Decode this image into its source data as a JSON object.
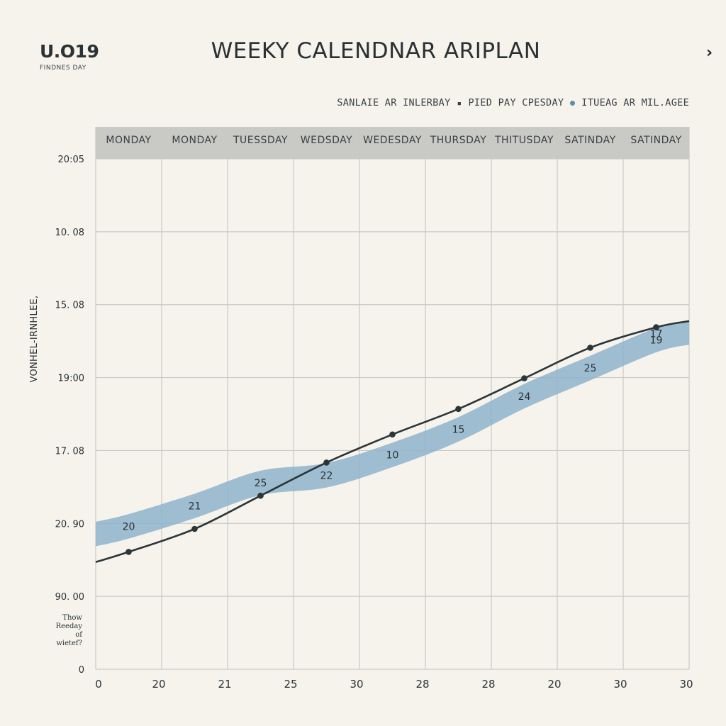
{
  "header": {
    "brand_code": "U.O19",
    "brand_sub": "FINDNES DAY",
    "title": "WEEKY CALENDNAR ARIPLAN",
    "nav_icon": "chevron-right-icon",
    "nav_glyph": "›"
  },
  "legend": [
    {
      "label": "SANLAIE AR INLERBAY",
      "marker": "▪"
    },
    {
      "label": "PIED PAY CPESDAY",
      "marker": "●"
    },
    {
      "label": "ITUEAG AR MIL.AGEE",
      "marker": ""
    }
  ],
  "note": {
    "lines": [
      "Thow",
      "Reeday",
      "of",
      "wietef?"
    ]
  },
  "colors": {
    "band": "#8fb3cc",
    "line": "#2c3538",
    "grid": "#c9c9c6",
    "header_bg": "#c9c9c6",
    "legend_dot": "#5f8ea8"
  },
  "chart_data": {
    "type": "line",
    "title": "WEEKY CALENDNAR ARIPLAN",
    "ylabel": "VONHEL-IRNHLEE,",
    "xlabel": "",
    "days": [
      "MONDAY",
      "MONDAY",
      "TUESSDAY",
      "WEDSDAY",
      "WEDESDAY",
      "THURSDAY",
      "THITUSDAY",
      "SATINDAY",
      "SATINDAY"
    ],
    "x_ticks": [
      "0",
      "20",
      "21",
      "25",
      "30",
      "28",
      "28",
      "20",
      "30",
      "30"
    ],
    "y_ticks": [
      "20:05",
      "10. 08",
      "15. 08",
      "19:00",
      "17. 08",
      "20. 90",
      "90. 00",
      "0"
    ],
    "ylim": [
      0,
      100
    ],
    "grid": true,
    "series": [
      {
        "name": "line",
        "x": [
          0.5,
          1.5,
          2.5,
          3.5,
          4.5,
          5.5,
          6.5,
          7.5,
          8.5
        ],
        "y": [
          23,
          27.5,
          34,
          40.5,
          46,
          51,
          57,
          63,
          67
        ],
        "labels": [
          "",
          "",
          "",
          "",
          "",
          "",
          "",
          "",
          "17"
        ]
      },
      {
        "name": "band",
        "x": [
          0.5,
          1.5,
          2.5,
          3.5,
          4.5,
          5.5,
          6.5,
          7.5,
          8.5
        ],
        "y": [
          28,
          32,
          36.5,
          38,
          42,
          47,
          53.5,
          59,
          64.5
        ],
        "labels": [
          "20",
          "21",
          "25",
          "22",
          "10",
          "15",
          "24",
          "25",
          "19"
        ]
      }
    ]
  }
}
